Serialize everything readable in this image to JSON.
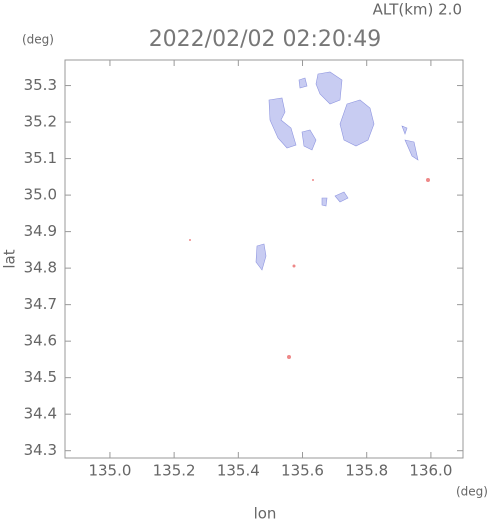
{
  "chart_data": {
    "type": "map",
    "altitude_label": "ALT(km) 2.0",
    "title": "2022/02/02 02:20:49",
    "xlabel": "lon",
    "ylabel": "lat",
    "x_unit": "(deg)",
    "y_unit": "(deg)",
    "xlim": [
      134.86,
      136.1
    ],
    "ylim": [
      34.28,
      35.37
    ],
    "xticks": [
      {
        "value": 135,
        "label": "135.0"
      },
      135.2,
      135.4,
      135.6,
      135.8,
      {
        "value": 136,
        "label": "136.0"
      }
    ],
    "yticks": [
      34.3,
      34.4,
      34.5,
      34.6,
      34.7,
      34.8,
      34.9,
      {
        "value": 35,
        "label": "35.0"
      },
      35.1,
      35.2,
      35.3
    ]
  }
}
